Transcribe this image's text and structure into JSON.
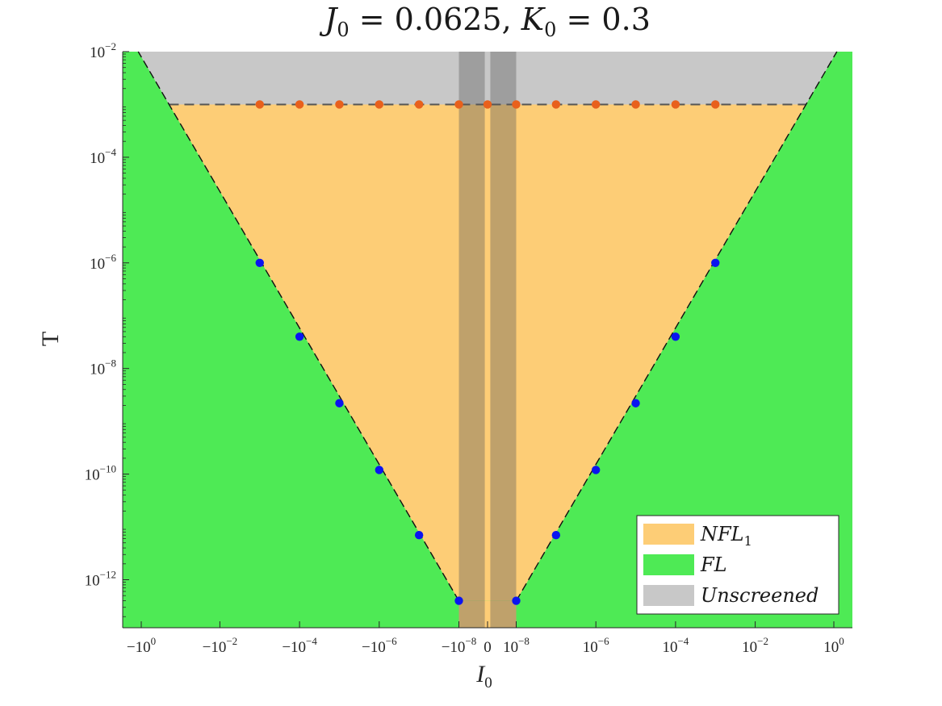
{
  "chart_data": {
    "type": "area",
    "title": "J_0 = 0.0625, K_0 = 0.3",
    "xlabel": "I_0",
    "ylabel": "T",
    "xscale": "symmetric-log",
    "yscale": "log",
    "xlim_log10_magnitude": [
      -9,
      0.05
    ],
    "ylim_log10": [
      -13,
      -2
    ],
    "x_ticks": [
      {
        "sign": "-",
        "base": "10",
        "exp": "0",
        "mag": 0
      },
      {
        "sign": "-",
        "base": "10",
        "exp": "-2",
        "mag": -2
      },
      {
        "sign": "-",
        "base": "10",
        "exp": "-4",
        "mag": -4
      },
      {
        "sign": "-",
        "base": "10",
        "exp": "-6",
        "mag": -6
      },
      {
        "sign": "-",
        "base": "10",
        "exp": "-8",
        "mag": -8
      },
      {
        "sign": "0",
        "base": "0",
        "exp": "",
        "mag": null
      },
      {
        "sign": "+",
        "base": "10",
        "exp": "-8",
        "mag": -8
      },
      {
        "sign": "+",
        "base": "10",
        "exp": "-6",
        "mag": -6
      },
      {
        "sign": "+",
        "base": "10",
        "exp": "-4",
        "mag": -4
      },
      {
        "sign": "+",
        "base": "10",
        "exp": "-2",
        "mag": -2
      },
      {
        "sign": "+",
        "base": "10",
        "exp": "0",
        "mag": 0
      }
    ],
    "y_ticks": [
      {
        "base": "10",
        "exp": "-2",
        "val": -2
      },
      {
        "base": "10",
        "exp": "-4",
        "val": -4
      },
      {
        "base": "10",
        "exp": "-6",
        "val": -6
      },
      {
        "base": "10",
        "exp": "-8",
        "val": -8
      },
      {
        "base": "10",
        "exp": "-10",
        "val": -10
      },
      {
        "base": "10",
        "exp": "-12",
        "val": -12
      }
    ],
    "regions": [
      {
        "name": "Unscreened",
        "color": "#c8c8c8"
      },
      {
        "name": "NFL_1",
        "color": "#fdcd76"
      },
      {
        "name": "FL",
        "color": "#4eea55"
      }
    ],
    "unscreened_threshold_T": 0.001,
    "crossover_line": {
      "left_log10_I": [
        -8,
        0.05
      ],
      "right_log10_I": [
        -8,
        0.05
      ],
      "log10_T": [
        -12.4,
        -2
      ]
    },
    "dark_bands_log10_I": [
      [
        -8,
        -8.65
      ],
      [
        8.65,
        8
      ]
    ],
    "series": [
      {
        "name": "",
        "color": "#e8601c",
        "points": [
          [
            -3,
            0.001
          ],
          [
            -4,
            0.001
          ],
          [
            -5,
            0.001
          ],
          [
            -6,
            0.001
          ],
          [
            -7,
            0.001
          ],
          [
            -8,
            0.001
          ],
          [
            0,
            0.001
          ],
          [
            8,
            0.001
          ],
          [
            7,
            0.001
          ],
          [
            6,
            0.001
          ],
          [
            5,
            0.001
          ],
          [
            4,
            0.001
          ],
          [
            3,
            0.001
          ]
        ]
      },
      {
        "name": "",
        "color": "#0a14f0",
        "points": [
          [
            -3,
            1e-06
          ],
          [
            -4,
            4e-08
          ],
          [
            -5,
            2.2e-09
          ],
          [
            -6,
            1.2e-10
          ],
          [
            -7,
            7e-12
          ],
          [
            -8,
            4e-13
          ],
          [
            8,
            4e-13
          ],
          [
            7,
            7e-12
          ],
          [
            6,
            1.2e-10
          ],
          [
            5,
            2.2e-09
          ],
          [
            4,
            4e-08
          ],
          [
            3,
            1e-06
          ]
        ]
      }
    ],
    "legend": {
      "position": "bottom-right",
      "entries": [
        {
          "label": "NFL_1",
          "color": "#fdcd76"
        },
        {
          "label": "FL",
          "color": "#4eea55"
        },
        {
          "label": "Unscreened",
          "color": "#c8c8c8"
        }
      ]
    }
  }
}
